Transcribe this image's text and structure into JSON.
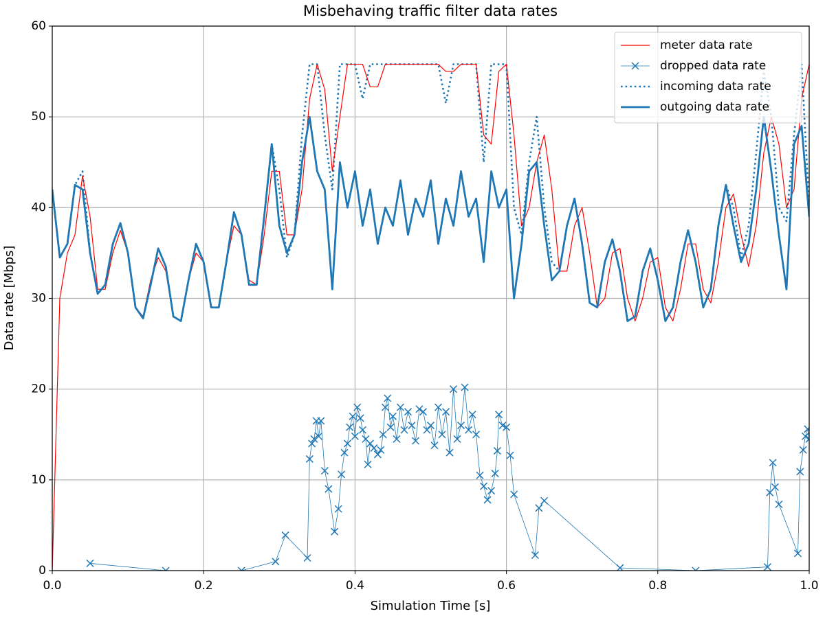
{
  "chart_data": {
    "type": "line",
    "title": "Misbehaving traffic filter data rates",
    "xlabel": "Simulation Time [s]",
    "ylabel": "Data rate [Mbps]",
    "xlim": [
      0,
      1
    ],
    "ylim": [
      0,
      60
    ],
    "xticks": [
      {
        "value": 0,
        "label": "0.0"
      },
      0.2,
      0.4,
      0.6,
      0.8,
      {
        "value": 1,
        "label": "1.0"
      }
    ],
    "yticks": [
      0,
      10,
      20,
      30,
      40,
      50,
      60
    ],
    "grid": true,
    "legend": "upper right",
    "x": [
      0,
      0.01,
      0.02,
      0.03,
      0.04,
      0.05,
      0.06,
      0.07,
      0.08,
      0.09,
      0.1,
      0.11,
      0.12,
      0.13,
      0.14,
      0.15,
      0.16,
      0.17,
      0.18,
      0.19,
      0.2,
      0.21,
      0.22,
      0.23,
      0.24,
      0.25,
      0.26,
      0.27,
      0.28,
      0.29,
      0.3,
      0.31,
      0.32,
      0.33,
      0.34,
      0.35,
      0.36,
      0.37,
      0.38,
      0.39,
      0.4,
      0.41,
      0.42,
      0.43,
      0.44,
      0.45,
      0.46,
      0.47,
      0.48,
      0.49,
      0.5,
      0.51,
      0.52,
      0.53,
      0.54,
      0.55,
      0.56,
      0.57,
      0.58,
      0.59,
      0.6,
      0.61,
      0.62,
      0.63,
      0.64,
      0.65,
      0.66,
      0.67,
      0.68,
      0.69,
      0.7,
      0.71,
      0.72,
      0.73,
      0.74,
      0.75,
      0.76,
      0.77,
      0.78,
      0.79,
      0.8,
      0.81,
      0.82,
      0.83,
      0.84,
      0.85,
      0.86,
      0.87,
      0.88,
      0.89,
      0.9,
      0.91,
      0.92,
      0.93,
      0.94,
      0.95,
      0.96,
      0.97,
      0.98,
      0.99,
      1
    ],
    "series": [
      {
        "name": "meter data rate",
        "color": "#ff0000",
        "linestyle": "solid",
        "linewidth": 1.2,
        "values": [
          0,
          30,
          35,
          37,
          43.5,
          39,
          31,
          31,
          35,
          37.5,
          35,
          29,
          28,
          32,
          34.5,
          33,
          28,
          27.5,
          32,
          35,
          34,
          29,
          29,
          34,
          38,
          37,
          32,
          31.5,
          37,
          44,
          44,
          37,
          37,
          42,
          52,
          55.8,
          53,
          44,
          50,
          55.8,
          55.8,
          55.8,
          53.3,
          53.3,
          55.8,
          55.8,
          55.8,
          55.8,
          55.8,
          55.8,
          55.8,
          55.8,
          55,
          55,
          55.8,
          55.8,
          55.8,
          48,
          47,
          55,
          55.8,
          48,
          38,
          40,
          45,
          48,
          42,
          33,
          33,
          38,
          40,
          35,
          29,
          30,
          35,
          35.5,
          30,
          27.5,
          30,
          34,
          34.5,
          29,
          27.5,
          31,
          36,
          36,
          31,
          29.5,
          34,
          40,
          41.5,
          37,
          33.5,
          38,
          46,
          50,
          47,
          40,
          42,
          52,
          55.8
        ]
      },
      {
        "name": "dropped data rate",
        "color": "#1f77b4",
        "linestyle": "solid",
        "linewidth": 0.8,
        "marker": "x",
        "x": [
          0.05,
          0.15,
          0.25,
          0.295,
          0.308,
          0.337,
          0.34,
          0.343,
          0.346,
          0.349,
          0.352,
          0.355,
          0.36,
          0.365,
          0.373,
          0.378,
          0.382,
          0.386,
          0.39,
          0.393,
          0.397,
          0.4,
          0.403,
          0.407,
          0.41,
          0.414,
          0.417,
          0.42,
          0.425,
          0.43,
          0.434,
          0.437,
          0.44,
          0.443,
          0.447,
          0.45,
          0.455,
          0.46,
          0.465,
          0.47,
          0.475,
          0.48,
          0.485,
          0.49,
          0.495,
          0.5,
          0.505,
          0.51,
          0.515,
          0.52,
          0.525,
          0.53,
          0.535,
          0.54,
          0.545,
          0.55,
          0.555,
          0.56,
          0.565,
          0.57,
          0.575,
          0.58,
          0.585,
          0.588,
          0.59,
          0.595,
          0.6,
          0.605,
          0.61,
          0.638,
          0.643,
          0.65,
          0.75,
          0.85,
          0.945,
          0.948,
          0.952,
          0.955,
          0.96,
          0.985,
          0.988,
          0.992,
          0.995,
          0.998,
          1
        ],
        "values": [
          0.8,
          0,
          0,
          1,
          3.9,
          1.4,
          12.3,
          14,
          14.5,
          16.5,
          14.8,
          16.5,
          11,
          9,
          4.3,
          6.8,
          10.6,
          13,
          14,
          15.8,
          17,
          14.8,
          18,
          16.8,
          15.5,
          14.5,
          11.7,
          14,
          13.5,
          12.8,
          13.3,
          15,
          18,
          19,
          15.8,
          17,
          14.5,
          18,
          15.5,
          17.5,
          16,
          14.3,
          17.8,
          17.5,
          15.5,
          16,
          13.8,
          18,
          15,
          17.5,
          13,
          20,
          14.5,
          16,
          20.2,
          15.5,
          17.2,
          15,
          10.5,
          9.3,
          7.8,
          8.8,
          10.7,
          13.2,
          17.2,
          16,
          15.8,
          12.7,
          8.4,
          1.7,
          6.9,
          7.7,
          0.3,
          0,
          0.4,
          8.6,
          11.9,
          9.2,
          7.3,
          1.9,
          10.9,
          13.3,
          14.8,
          15.6,
          14.5
        ]
      },
      {
        "name": "incoming data rate",
        "color": "#1f77b4",
        "linestyle": "dotted",
        "linewidth": 2.6,
        "values": [
          42,
          34.5,
          36,
          42.5,
          44,
          35,
          30.5,
          31.5,
          36,
          38.3,
          35,
          29,
          27.8,
          31.5,
          35.5,
          33.5,
          28,
          27.5,
          32,
          36,
          34,
          29,
          29,
          34,
          39.5,
          37,
          31.5,
          31.5,
          39,
          47,
          42,
          34.5,
          37,
          48,
          55.8,
          55.8,
          48,
          42,
          55.8,
          55.8,
          55.8,
          52,
          55.8,
          55.8,
          55.8,
          55.8,
          55.8,
          55.8,
          55.8,
          55.8,
          55.8,
          55.8,
          51.5,
          55.8,
          55.8,
          55.8,
          55.8,
          45,
          55.8,
          55.8,
          55.8,
          40,
          37,
          45,
          50,
          40,
          34,
          33,
          38,
          41,
          36,
          29.5,
          29,
          34,
          36.5,
          33,
          27.5,
          28,
          33,
          35.5,
          32,
          27.5,
          29,
          34,
          37.5,
          34,
          29,
          31,
          38,
          42.5,
          40,
          34.5,
          38,
          46,
          55,
          50,
          40,
          38.5,
          48,
          55.8,
          40
        ]
      },
      {
        "name": "outgoing data rate",
        "color": "#1f77b4",
        "linestyle": "solid",
        "linewidth": 2.8,
        "values": [
          42,
          34.5,
          36,
          42.5,
          42,
          35,
          30.5,
          31.5,
          36,
          38.3,
          35,
          29,
          27.8,
          31.5,
          35.5,
          33.5,
          28,
          27.5,
          32,
          36,
          34,
          29,
          29,
          34,
          39.5,
          37,
          31.5,
          31.5,
          39,
          47,
          38,
          35,
          37,
          45,
          50,
          44,
          42,
          31,
          45,
          40,
          44,
          38,
          42,
          36,
          40,
          38,
          43,
          37,
          41,
          39,
          43,
          36,
          41,
          38,
          44,
          39,
          41,
          34,
          44,
          40,
          42,
          30,
          36,
          44,
          45,
          38,
          32,
          33,
          38,
          41,
          36,
          29.5,
          29,
          34,
          36.5,
          33,
          27.5,
          28,
          33,
          35.5,
          32,
          27.5,
          29,
          34,
          37.5,
          34,
          29,
          31,
          38,
          42.5,
          38,
          34,
          36,
          42,
          50,
          44,
          37,
          31,
          47,
          49,
          39
        ]
      }
    ]
  }
}
